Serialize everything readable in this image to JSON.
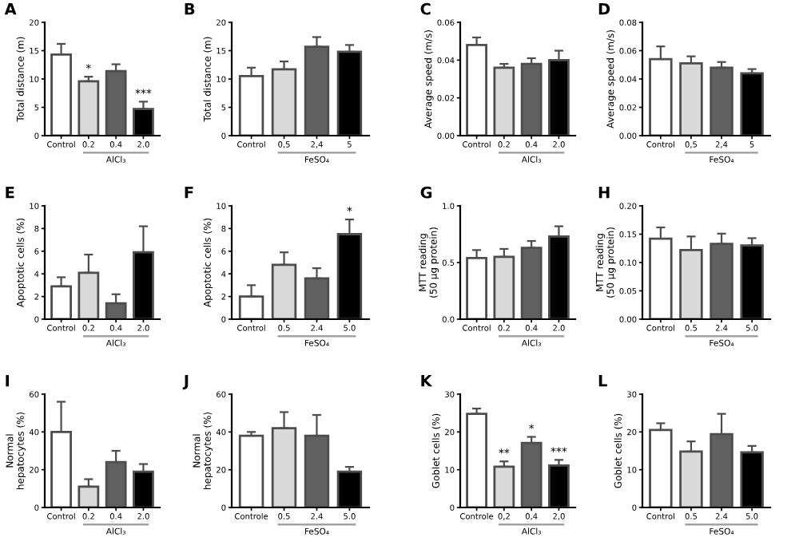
{
  "chart_data": [
    {
      "type": "bar",
      "title": "A",
      "ylabel": "Total distance (m)",
      "xlabel": "AlCl₃",
      "categories": [
        "Control",
        "0.2",
        "0.4",
        "2.0"
      ],
      "values": [
        14.3,
        9.6,
        11.4,
        4.7
      ],
      "errors": [
        [
          14.3,
          16.2
        ],
        [
          9.6,
          10.4
        ],
        [
          11.4,
          12.6
        ],
        [
          4.7,
          6.0
        ]
      ],
      "colors": [
        "#ffffff",
        "#d9d9d9",
        "#606060",
        "#000000"
      ],
      "ylim": [
        0,
        20
      ],
      "yticks": [
        0,
        5,
        10,
        15,
        20
      ],
      "annotations": [
        {
          "text": "*",
          "x": "0.2",
          "y": 10.4
        },
        {
          "text": "***",
          "x": "2.0",
          "y": 6.0
        }
      ]
    },
    {
      "type": "bar",
      "title": "B",
      "ylabel": "Total distance (m)",
      "xlabel": "FeSO₄",
      "categories": [
        "Control",
        "0,5",
        "2,4",
        "5"
      ],
      "values": [
        10.5,
        11.7,
        15.7,
        14.8
      ],
      "errors": [
        [
          10.5,
          12.0
        ],
        [
          11.7,
          13.1
        ],
        [
          15.7,
          17.4
        ],
        [
          14.8,
          16.0
        ]
      ],
      "colors": [
        "#ffffff",
        "#d9d9d9",
        "#606060",
        "#000000"
      ],
      "ylim": [
        0,
        20
      ],
      "yticks": [
        0,
        5,
        10,
        15,
        20
      ]
    },
    {
      "type": "bar",
      "title": "C",
      "ylabel": "Average speed (m/s)",
      "xlabel": "AlCl₃",
      "categories": [
        "Control",
        "0.2",
        "0.4",
        "2.0"
      ],
      "values": [
        0.048,
        0.036,
        0.038,
        0.04
      ],
      "errors": [
        [
          0.048,
          0.052
        ],
        [
          0.036,
          0.038
        ],
        [
          0.038,
          0.041
        ],
        [
          0.04,
          0.045
        ]
      ],
      "colors": [
        "#ffffff",
        "#d9d9d9",
        "#606060",
        "#000000"
      ],
      "ylim": [
        0,
        0.06
      ],
      "yticks": [
        {
          "value": 0,
          "label": "0.00"
        },
        {
          "value": 0.02,
          "label": "0.02"
        },
        {
          "value": 0.04,
          "label": "0.04"
        },
        {
          "value": 0.06,
          "label": "0.06"
        }
      ]
    },
    {
      "type": "bar",
      "title": "D",
      "ylabel": "Average speed (m/s)",
      "xlabel": "FeSO₄",
      "categories": [
        "Control",
        "0,5",
        "2,4",
        "5"
      ],
      "values": [
        0.054,
        0.051,
        0.048,
        0.044
      ],
      "errors": [
        [
          0.054,
          0.063
        ],
        [
          0.051,
          0.056
        ],
        [
          0.048,
          0.052
        ],
        [
          0.044,
          0.047
        ]
      ],
      "colors": [
        "#ffffff",
        "#d9d9d9",
        "#606060",
        "#000000"
      ],
      "ylim": [
        0,
        0.08
      ],
      "yticks": [
        {
          "value": 0,
          "label": "0.00"
        },
        {
          "value": 0.02,
          "label": "0.02"
        },
        {
          "value": 0.04,
          "label": "0.04"
        },
        {
          "value": 0.06,
          "label": "0.06"
        },
        {
          "value": 0.08,
          "label": "0.08"
        }
      ]
    },
    {
      "type": "bar",
      "title": "E",
      "ylabel": "Apoptotic cells (%)",
      "xlabel": "AlCl₃",
      "categories": [
        "Control",
        "0.2",
        "0.4",
        "2.0"
      ],
      "values": [
        2.9,
        4.1,
        1.4,
        5.9
      ],
      "errors": [
        [
          2.9,
          3.7
        ],
        [
          4.1,
          5.7
        ],
        [
          1.4,
          2.2
        ],
        [
          5.9,
          8.2
        ]
      ],
      "colors": [
        "#ffffff",
        "#d9d9d9",
        "#606060",
        "#000000"
      ],
      "ylim": [
        0,
        10
      ],
      "yticks": [
        0,
        2,
        4,
        6,
        8,
        10
      ]
    },
    {
      "type": "bar",
      "title": "F",
      "ylabel": "Apoptotic cells (%)",
      "xlabel": "FeSO₄",
      "categories": [
        "Control",
        "0.5",
        "2.4",
        "5.0"
      ],
      "values": [
        2.0,
        4.8,
        3.6,
        7.5
      ],
      "errors": [
        [
          2.0,
          3.0
        ],
        [
          4.8,
          5.9
        ],
        [
          3.6,
          4.5
        ],
        [
          7.5,
          8.8
        ]
      ],
      "colors": [
        "#ffffff",
        "#d9d9d9",
        "#606060",
        "#000000"
      ],
      "ylim": [
        0,
        10
      ],
      "yticks": [
        0,
        2,
        4,
        6,
        8,
        10
      ],
      "annotations": [
        {
          "text": "*",
          "x": "5.0",
          "y": 8.8
        }
      ]
    },
    {
      "type": "bar",
      "title": "G",
      "ylabel": "MTT reading\n(50 µg protein)",
      "xlabel": "AlCl₃",
      "categories": [
        "Control",
        "0.2",
        "0.4",
        "2.0"
      ],
      "values": [
        0.54,
        0.55,
        0.63,
        0.73
      ],
      "errors": [
        [
          0.54,
          0.61
        ],
        [
          0.55,
          0.62
        ],
        [
          0.63,
          0.69
        ],
        [
          0.73,
          0.82
        ]
      ],
      "colors": [
        "#ffffff",
        "#d9d9d9",
        "#606060",
        "#000000"
      ],
      "ylim": [
        0,
        1.0
      ],
      "yticks": [
        {
          "value": 0,
          "label": "0.0"
        },
        0.5,
        {
          "value": 1.0,
          "label": "1.0"
        }
      ]
    },
    {
      "type": "bar",
      "title": "H",
      "ylabel": "MTT reading\n(50 µg protein)",
      "xlabel": "FeSO₄",
      "categories": [
        "Control",
        "0.5",
        "2.4",
        "5.0"
      ],
      "values": [
        0.142,
        0.122,
        0.133,
        0.13
      ],
      "errors": [
        [
          0.142,
          0.162
        ],
        [
          0.122,
          0.146
        ],
        [
          0.133,
          0.151
        ],
        [
          0.13,
          0.143
        ]
      ],
      "colors": [
        "#ffffff",
        "#d9d9d9",
        "#606060",
        "#000000"
      ],
      "ylim": [
        0,
        0.2
      ],
      "yticks": [
        {
          "value": 0,
          "label": "0.00"
        },
        0.05,
        {
          "value": 0.1,
          "label": "0.10"
        },
        0.15,
        {
          "value": 0.2,
          "label": "0.20"
        }
      ]
    },
    {
      "type": "bar",
      "title": "I",
      "ylabel": "Normal\nhepatocytes (%)",
      "xlabel": "AlCl₃",
      "categories": [
        "Control",
        "0.2",
        "0.4",
        "2.0"
      ],
      "values": [
        40,
        11,
        24,
        19
      ],
      "errors": [
        [
          40,
          56
        ],
        [
          11,
          15
        ],
        [
          24,
          30
        ],
        [
          19,
          23
        ]
      ],
      "colors": [
        "#ffffff",
        "#d9d9d9",
        "#606060",
        "#000000"
      ],
      "ylim": [
        0,
        60
      ],
      "yticks": [
        0,
        20,
        40,
        60
      ]
    },
    {
      "type": "bar",
      "title": "J",
      "ylabel": "Normal\nhepatocytes (%)",
      "xlabel": "FeSO₄",
      "categories": [
        "Controle",
        "0.5",
        "2.4",
        "5.0"
      ],
      "values": [
        38,
        42,
        38,
        19
      ],
      "errors": [
        [
          38,
          40
        ],
        [
          42,
          50.5
        ],
        [
          38,
          49
        ],
        [
          19,
          21.5
        ]
      ],
      "colors": [
        "#ffffff",
        "#d9d9d9",
        "#606060",
        "#000000"
      ],
      "ylim": [
        0,
        60
      ],
      "yticks": [
        0,
        20,
        40,
        60
      ]
    },
    {
      "type": "bar",
      "title": "K",
      "ylabel": "Goblet cells (%)",
      "xlabel": "AlCl₃",
      "categories": [
        "Controle",
        "0,2",
        "0,4",
        "2,0"
      ],
      "values": [
        24.8,
        10.8,
        17.1,
        11.1
      ],
      "errors": [
        [
          24.8,
          26.2
        ],
        [
          10.8,
          12.2
        ],
        [
          17.1,
          18.7
        ],
        [
          11.1,
          12.6
        ]
      ],
      "colors": [
        "#ffffff",
        "#d9d9d9",
        "#606060",
        "#000000"
      ],
      "ylim": [
        0,
        30
      ],
      "yticks": [
        0,
        10,
        20,
        30
      ],
      "annotations": [
        {
          "text": "**",
          "x": "0,2",
          "y": 12.2
        },
        {
          "text": "*",
          "x": "0,4",
          "y": 18.7
        },
        {
          "text": "***",
          "x": "2,0",
          "y": 12.6
        }
      ]
    },
    {
      "type": "bar",
      "title": "L",
      "ylabel": "Goblet cells (%)",
      "xlabel": "FeSO₄",
      "categories": [
        "Control",
        "0.5",
        "2.4",
        "5.0"
      ],
      "values": [
        20.5,
        14.8,
        19.4,
        14.6
      ],
      "errors": [
        [
          20.5,
          22.3
        ],
        [
          14.8,
          17.5
        ],
        [
          19.4,
          24.8
        ],
        [
          14.6,
          16.3
        ]
      ],
      "colors": [
        "#ffffff",
        "#d9d9d9",
        "#606060",
        "#000000"
      ],
      "ylim": [
        0,
        30
      ],
      "yticks": [
        0,
        10,
        20,
        30
      ]
    }
  ]
}
